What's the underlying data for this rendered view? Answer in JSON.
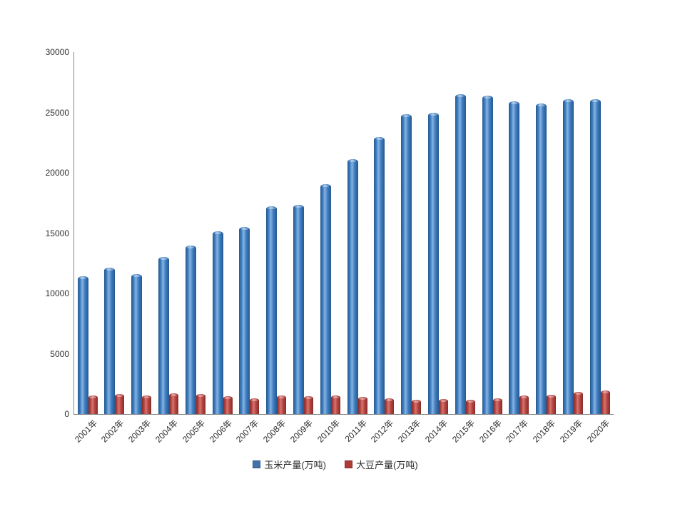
{
  "chart_data": {
    "type": "bar",
    "title": "",
    "xlabel": "",
    "ylabel": "",
    "categories": [
      "2001年",
      "2002年",
      "2003年",
      "2004年",
      "2005年",
      "2006年",
      "2007年",
      "2008年",
      "2009年",
      "2010年",
      "2011年",
      "2012年",
      "2013年",
      "2014年",
      "2015年",
      "2016年",
      "2017年",
      "2018年",
      "2019年",
      "2020年"
    ],
    "series": [
      {
        "name": "玉米产量(万吨)",
        "color": "#3E7CC0",
        "color_edge": "#24598F",
        "color_light": "#85B3E0",
        "values": [
          11409,
          12131,
          11583,
          13029,
          13937,
          15160,
          15523,
          17225,
          17326,
          19075,
          21132,
          22956,
          24845,
          24976,
          26499,
          26361,
          25907,
          25717,
          26078,
          26067
        ]
      },
      {
        "name": "大豆产量(万吨)",
        "color": "#B5433F",
        "color_edge": "#852D2B",
        "color_light": "#D6756F",
        "values": [
          1541,
          1651,
          1539,
          1740,
          1635,
          1508,
          1273,
          1554,
          1498,
          1514,
          1449,
          1301,
          1195,
          1215,
          1179,
          1294,
          1528,
          1597,
          1810,
          1960
        ]
      }
    ],
    "ylim": [
      0,
      30000
    ],
    "yticks": [
      0,
      5000,
      10000,
      15000,
      20000,
      25000,
      30000
    ],
    "grid": false,
    "legend_position": "bottom"
  },
  "legend": {
    "corn_label": "玉米产量(万吨)",
    "soy_label": "大豆产量(万吨)",
    "corn_marker_color": "#4472A8",
    "soy_marker_color": "#AD3A37"
  },
  "colors": {
    "background": "#FFFFFF",
    "axis_line": "#898989",
    "tick_text": "#2E2E2E"
  }
}
